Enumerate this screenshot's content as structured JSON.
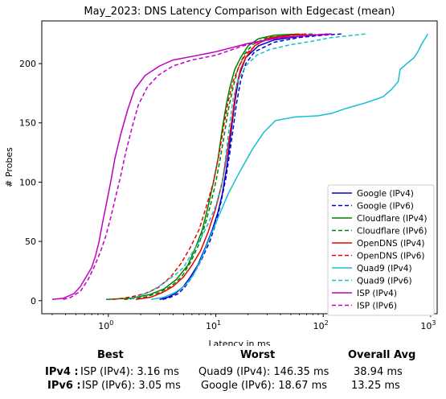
{
  "chart_data": {
    "type": "line",
    "title": "May_2023: DNS Latency Comparison with Edgecast (mean)",
    "xlabel": "Latency in ms",
    "ylabel": "# Probes",
    "xscale": "log",
    "xlim": [
      0.24,
      1150
    ],
    "ylim": [
      -11,
      236
    ],
    "x_ticks": [
      {
        "v": 1,
        "label": "10^0"
      },
      {
        "v": 10,
        "label": "10^1"
      },
      {
        "v": 100,
        "label": "10^2"
      },
      {
        "v": 1000,
        "label": "10^3"
      }
    ],
    "y_ticks": [
      0,
      50,
      100,
      150,
      200
    ],
    "grid": false,
    "legend_position": "lower-right",
    "series": [
      {
        "name": "Google (IPv4)",
        "color": "#0000cc",
        "dash": "solid",
        "points": [
          [
            3.0,
            1
          ],
          [
            3.6,
            3
          ],
          [
            4.2,
            6
          ],
          [
            5.0,
            12
          ],
          [
            5.8,
            20
          ],
          [
            6.8,
            30
          ],
          [
            8.0,
            45
          ],
          [
            9.3,
            60
          ],
          [
            10.5,
            75
          ],
          [
            11.5,
            90
          ],
          [
            12.5,
            110
          ],
          [
            13.4,
            130
          ],
          [
            14.2,
            150
          ],
          [
            15.2,
            170
          ],
          [
            16.5,
            190
          ],
          [
            19,
            205
          ],
          [
            25,
            215
          ],
          [
            35,
            220
          ],
          [
            60,
            223
          ],
          [
            80,
            224
          ],
          [
            120,
            225
          ]
        ]
      },
      {
        "name": "Google (IPv6)",
        "color": "#0000cc",
        "dash": "dashed",
        "points": [
          [
            3.2,
            1
          ],
          [
            3.8,
            3
          ],
          [
            4.5,
            6
          ],
          [
            5.2,
            12
          ],
          [
            6.2,
            22
          ],
          [
            7.4,
            35
          ],
          [
            8.8,
            50
          ],
          [
            10.0,
            65
          ],
          [
            11.3,
            85
          ],
          [
            12.5,
            105
          ],
          [
            13.5,
            125
          ],
          [
            14.5,
            145
          ],
          [
            15.5,
            165
          ],
          [
            17,
            185
          ],
          [
            19,
            200
          ],
          [
            23,
            210
          ],
          [
            35,
            218
          ],
          [
            60,
            222
          ],
          [
            100,
            224
          ],
          [
            150,
            225
          ]
        ]
      },
      {
        "name": "Cloudflare (IPv4)",
        "color": "#008000",
        "dash": "solid",
        "points": [
          [
            0.95,
            1
          ],
          [
            1.6,
            2
          ],
          [
            2.4,
            5
          ],
          [
            3.3,
            10
          ],
          [
            4.3,
            18
          ],
          [
            5.5,
            30
          ],
          [
            6.5,
            45
          ],
          [
            7.5,
            60
          ],
          [
            8.5,
            80
          ],
          [
            9.5,
            100
          ],
          [
            10.5,
            120
          ],
          [
            11.5,
            145
          ],
          [
            12.5,
            165
          ],
          [
            13.5,
            180
          ],
          [
            15,
            195
          ],
          [
            17,
            205
          ],
          [
            20,
            215
          ],
          [
            25,
            221
          ],
          [
            35,
            224
          ],
          [
            60,
            225
          ]
        ]
      },
      {
        "name": "Cloudflare (IPv6)",
        "color": "#008000",
        "dash": "dashed",
        "points": [
          [
            1.4,
            1
          ],
          [
            2.2,
            3
          ],
          [
            3.0,
            7
          ],
          [
            3.8,
            12
          ],
          [
            4.8,
            20
          ],
          [
            5.8,
            32
          ],
          [
            7.0,
            48
          ],
          [
            8.0,
            65
          ],
          [
            9.0,
            82
          ],
          [
            10.0,
            100
          ],
          [
            11.0,
            120
          ],
          [
            12.0,
            140
          ],
          [
            13.0,
            160
          ],
          [
            14.5,
            180
          ],
          [
            16,
            195
          ],
          [
            18.5,
            208
          ],
          [
            22,
            216
          ],
          [
            30,
            222
          ],
          [
            50,
            224
          ],
          [
            80,
            225
          ]
        ]
      },
      {
        "name": "OpenDNS (IPv4)",
        "color": "#ee0000",
        "dash": "solid",
        "points": [
          [
            1.8,
            1
          ],
          [
            2.5,
            3
          ],
          [
            3.2,
            7
          ],
          [
            4.0,
            12
          ],
          [
            5.0,
            20
          ],
          [
            6.0,
            30
          ],
          [
            7.2,
            42
          ],
          [
            8.5,
            58
          ],
          [
            10.0,
            78
          ],
          [
            11.5,
            100
          ],
          [
            12.5,
            120
          ],
          [
            13.5,
            140
          ],
          [
            14.5,
            160
          ],
          [
            15.5,
            180
          ],
          [
            17,
            195
          ],
          [
            19,
            205
          ],
          [
            23,
            215
          ],
          [
            30,
            221
          ],
          [
            50,
            224
          ],
          [
            70,
            225
          ]
        ]
      },
      {
        "name": "OpenDNS (IPv6)",
        "color": "#ee0000",
        "dash": "dashed",
        "points": [
          [
            1.1,
            1
          ],
          [
            1.6,
            3
          ],
          [
            2.2,
            6
          ],
          [
            2.9,
            11
          ],
          [
            3.8,
            20
          ],
          [
            4.8,
            32
          ],
          [
            5.8,
            45
          ],
          [
            7.0,
            60
          ],
          [
            8.2,
            80
          ],
          [
            9.5,
            100
          ],
          [
            10.8,
            125
          ],
          [
            12.0,
            150
          ],
          [
            13.2,
            170
          ],
          [
            14.5,
            185
          ],
          [
            16.5,
            198
          ],
          [
            19,
            208
          ],
          [
            24,
            216
          ],
          [
            32,
            222
          ],
          [
            50,
            224
          ],
          [
            70,
            225
          ]
        ]
      },
      {
        "name": "Quad9 (IPv4)",
        "color": "#17becf",
        "dash": "solid",
        "points": [
          [
            2.5,
            1
          ],
          [
            3.3,
            3
          ],
          [
            4.2,
            7
          ],
          [
            5.2,
            13
          ],
          [
            6.2,
            22
          ],
          [
            7.3,
            35
          ],
          [
            8.5,
            50
          ],
          [
            10.5,
            70
          ],
          [
            13,
            90
          ],
          [
            17,
            110
          ],
          [
            22,
            128
          ],
          [
            28,
            142
          ],
          [
            36,
            152
          ],
          [
            55,
            155
          ],
          [
            90,
            156
          ],
          [
            120,
            158
          ],
          [
            160,
            162
          ],
          [
            250,
            167
          ],
          [
            360,
            172
          ],
          [
            430,
            178
          ],
          [
            500,
            185
          ],
          [
            520,
            195
          ],
          [
            600,
            200
          ],
          [
            700,
            205
          ],
          [
            760,
            210
          ],
          [
            830,
            217
          ],
          [
            900,
            222
          ],
          [
            940,
            225
          ]
        ]
      },
      {
        "name": "Quad9 (IPv6)",
        "color": "#17becf",
        "dash": "dashed",
        "points": [
          [
            1.6,
            1
          ],
          [
            2.5,
            8
          ],
          [
            3.3,
            15
          ],
          [
            4.2,
            22
          ],
          [
            5.0,
            28
          ],
          [
            6.0,
            40
          ],
          [
            7.2,
            52
          ],
          [
            8.5,
            65
          ],
          [
            10.0,
            80
          ],
          [
            11.5,
            100
          ],
          [
            12.5,
            125
          ],
          [
            13.5,
            150
          ],
          [
            14.5,
            170
          ],
          [
            16,
            185
          ],
          [
            19,
            198
          ],
          [
            24,
            207
          ],
          [
            32,
            212
          ],
          [
            50,
            216
          ],
          [
            80,
            219
          ],
          [
            120,
            222
          ],
          [
            250,
            225
          ]
        ]
      },
      {
        "name": "ISP (IPv4)",
        "color": "#bf00bf",
        "dash": "solid",
        "points": [
          [
            0.3,
            1
          ],
          [
            0.38,
            2
          ],
          [
            0.48,
            6
          ],
          [
            0.55,
            12
          ],
          [
            0.62,
            20
          ],
          [
            0.7,
            28
          ],
          [
            0.76,
            38
          ],
          [
            0.82,
            50
          ],
          [
            0.88,
            65
          ],
          [
            0.95,
            80
          ],
          [
            1.05,
            100
          ],
          [
            1.15,
            120
          ],
          [
            1.3,
            140
          ],
          [
            1.5,
            160
          ],
          [
            1.75,
            178
          ],
          [
            2.2,
            190
          ],
          [
            3.0,
            198
          ],
          [
            4.0,
            203
          ],
          [
            6.0,
            206
          ],
          [
            10,
            210
          ],
          [
            20,
            217
          ],
          [
            40,
            222
          ],
          [
            80,
            224
          ],
          [
            120,
            225
          ]
        ]
      },
      {
        "name": "ISP (IPv6)",
        "color": "#bf00bf",
        "dash": "dashed",
        "points": [
          [
            0.38,
            1
          ],
          [
            0.45,
            3
          ],
          [
            0.55,
            8
          ],
          [
            0.65,
            18
          ],
          [
            0.75,
            30
          ],
          [
            0.85,
            42
          ],
          [
            0.95,
            55
          ],
          [
            1.05,
            70
          ],
          [
            1.15,
            85
          ],
          [
            1.3,
            105
          ],
          [
            1.45,
            125
          ],
          [
            1.65,
            145
          ],
          [
            1.9,
            165
          ],
          [
            2.3,
            180
          ],
          [
            2.9,
            190
          ],
          [
            4.0,
            198
          ],
          [
            6.0,
            203
          ],
          [
            10,
            207
          ],
          [
            18,
            215
          ],
          [
            35,
            221
          ],
          [
            70,
            224
          ],
          [
            110,
            225
          ]
        ]
      }
    ]
  },
  "summary": {
    "head_best": "Best",
    "head_worst": "Worst",
    "head_avg": "Overall Avg",
    "ipv4": {
      "label": "IPv4 :",
      "best": "ISP (IPv4): 3.16 ms",
      "worst": "Quad9 (IPv4): 146.35 ms",
      "avg": "38.94 ms"
    },
    "ipv6": {
      "label": "IPv6 :",
      "best": "ISP (IPv6): 3.05 ms",
      "worst": "Google (IPv6): 18.67 ms",
      "avg": "13.25 ms"
    }
  }
}
